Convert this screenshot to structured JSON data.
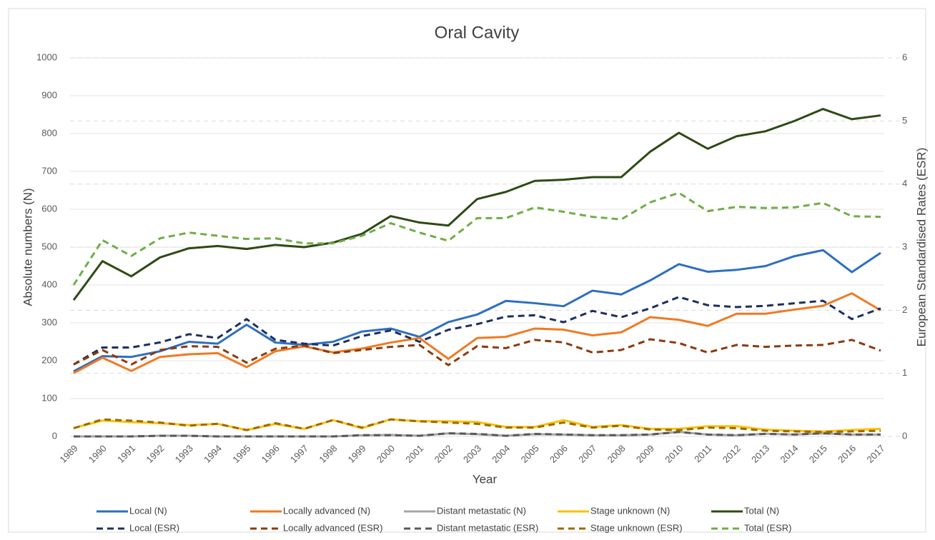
{
  "chart_data": {
    "type": "line",
    "title": "Oral Cavity",
    "x_label": "Year",
    "y_label": "Absolute numbers (N)",
    "y2_label": "European Standardised Rates (ESR)",
    "categories": [
      "1989",
      "1990",
      "1991",
      "1992",
      "1993",
      "1994",
      "1995",
      "1996",
      "1997",
      "1998",
      "1999",
      "2000",
      "2001",
      "2002",
      "2003",
      "2004",
      "2005",
      "2006",
      "2007",
      "2008",
      "2009",
      "2010",
      "2011",
      "2012",
      "2013",
      "2014",
      "2015",
      "2016",
      "2017"
    ],
    "ylim": [
      0,
      1000
    ],
    "yticks": [
      0,
      100,
      200,
      300,
      400,
      500,
      600,
      700,
      800,
      900,
      1000
    ],
    "y2lim": [
      0,
      6
    ],
    "y2ticks": [
      0,
      1,
      2,
      3,
      4,
      5,
      6
    ],
    "grid": true,
    "legend": "bottom",
    "series": [
      {
        "name": "Local (N)",
        "color": "#2e6ebf",
        "linestyle": "solid",
        "values": [
          172,
          212,
          210,
          225,
          250,
          245,
          295,
          248,
          242,
          250,
          277,
          285,
          263,
          302,
          322,
          358,
          352,
          344,
          385,
          375,
          412,
          455,
          435,
          440,
          450,
          476,
          492,
          434,
          485
        ]
      },
      {
        "name": "Locally advanced (N)",
        "color": "#f07a22",
        "linestyle": "solid",
        "values": [
          167,
          208,
          173,
          210,
          217,
          220,
          183,
          225,
          238,
          222,
          232,
          248,
          260,
          205,
          260,
          263,
          285,
          282,
          267,
          275,
          315,
          308,
          292,
          324,
          324,
          335,
          345,
          378,
          333
        ]
      },
      {
        "name": "Distant metastatic (N)",
        "color": "#a6a6a6",
        "linestyle": "solid",
        "values": [
          0,
          0,
          0,
          2,
          2,
          0,
          0,
          0,
          0,
          0,
          3,
          4,
          2,
          8,
          6,
          2,
          6,
          5,
          3,
          3,
          5,
          12,
          5,
          3,
          7,
          5,
          8,
          5,
          5
        ]
      },
      {
        "name": "Stage unknown (N)",
        "color": "#ffc000",
        "linestyle": "solid",
        "values": [
          22,
          42,
          38,
          35,
          30,
          33,
          17,
          33,
          20,
          43,
          22,
          45,
          40,
          40,
          38,
          25,
          25,
          43,
          25,
          30,
          20,
          20,
          27,
          27,
          18,
          15,
          13,
          17,
          20
        ]
      },
      {
        "name": "Total (N)",
        "color": "#2e4a14",
        "linestyle": "solid",
        "values": [
          360,
          463,
          423,
          473,
          497,
          503,
          495,
          506,
          500,
          512,
          535,
          582,
          565,
          557,
          627,
          646,
          675,
          678,
          685,
          685,
          752,
          802,
          760,
          793,
          806,
          833,
          865,
          838,
          848
        ]
      },
      {
        "name": "Local  (ESR)",
        "color": "#1c2f5e",
        "linestyle": "dashed",
        "axis": "y2",
        "values": [
          1.14,
          1.41,
          1.41,
          1.49,
          1.62,
          1.56,
          1.86,
          1.53,
          1.47,
          1.44,
          1.59,
          1.68,
          1.5,
          1.69,
          1.78,
          1.9,
          1.92,
          1.81,
          1.99,
          1.89,
          2.03,
          2.21,
          2.08,
          2.05,
          2.07,
          2.11,
          2.15,
          1.86,
          2.03
        ]
      },
      {
        "name": "Locally advanced (ESR)",
        "color": "#8b3a0e",
        "linestyle": "dashed",
        "axis": "y2",
        "values": [
          1.14,
          1.37,
          1.14,
          1.37,
          1.43,
          1.42,
          1.17,
          1.39,
          1.44,
          1.32,
          1.37,
          1.42,
          1.45,
          1.13,
          1.43,
          1.4,
          1.53,
          1.49,
          1.33,
          1.37,
          1.54,
          1.48,
          1.33,
          1.45,
          1.42,
          1.44,
          1.45,
          1.53,
          1.36
        ]
      },
      {
        "name": "Distant metastatic (ESR)",
        "color": "#595959",
        "linestyle": "dashed",
        "axis": "y2",
        "values": [
          0,
          0,
          0,
          0.01,
          0.01,
          0,
          0,
          0,
          0,
          0,
          0.02,
          0.02,
          0.01,
          0.05,
          0.04,
          0.01,
          0.04,
          0.03,
          0.02,
          0.02,
          0.03,
          0.07,
          0.03,
          0.02,
          0.04,
          0.03,
          0.05,
          0.03,
          0.03
        ]
      },
      {
        "name": "Stage unknown  (ESR)",
        "color": "#9c6a00",
        "linestyle": "dashed",
        "axis": "y2",
        "values": [
          0.13,
          0.27,
          0.25,
          0.22,
          0.17,
          0.2,
          0.1,
          0.21,
          0.12,
          0.26,
          0.14,
          0.27,
          0.24,
          0.22,
          0.2,
          0.14,
          0.14,
          0.22,
          0.14,
          0.17,
          0.11,
          0.1,
          0.14,
          0.13,
          0.09,
          0.08,
          0.07,
          0.08,
          0.09
        ]
      },
      {
        "name": "Total (ESR)",
        "color": "#70ad47",
        "linestyle": "dashed",
        "axis": "y2",
        "values": [
          2.4,
          3.11,
          2.86,
          3.14,
          3.23,
          3.18,
          3.13,
          3.14,
          3.06,
          3.06,
          3.18,
          3.38,
          3.23,
          3.1,
          3.46,
          3.46,
          3.63,
          3.56,
          3.48,
          3.44,
          3.71,
          3.86,
          3.57,
          3.64,
          3.62,
          3.63,
          3.7,
          3.49,
          3.48
        ]
      }
    ]
  }
}
